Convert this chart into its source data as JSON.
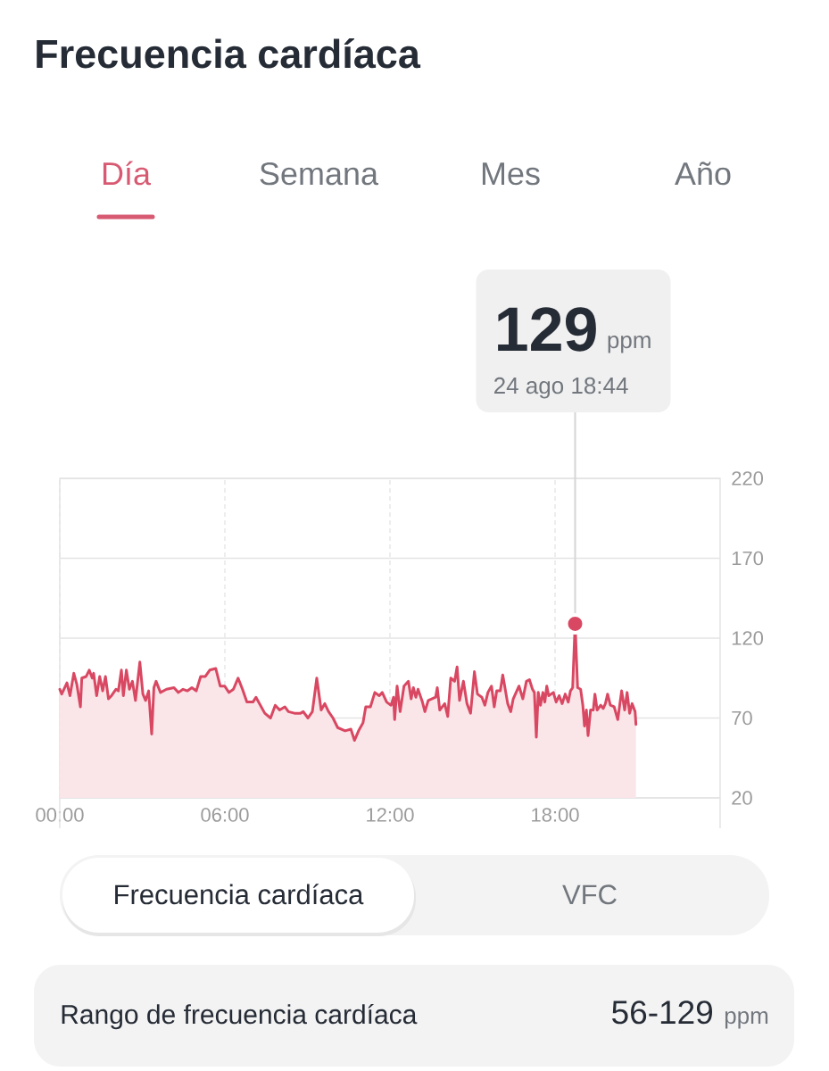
{
  "chart_data": {
    "type": "area",
    "title": "Frecuencia cardíaca",
    "series": [
      {
        "color": "#d94862",
        "x": [
          0,
          0.07,
          0.26,
          0.37,
          0.51,
          0.62,
          0.75,
          0.8,
          0.96,
          1.07,
          1.18,
          1.23,
          1.34,
          1.45,
          1.56,
          1.66,
          1.77,
          1.88,
          2.04,
          2.13,
          2.24,
          2.31,
          2.42,
          2.53,
          2.64,
          2.75,
          2.91,
          3.02,
          3.12,
          3.23,
          3.34,
          3.42,
          3.5,
          3.66,
          3.88,
          4.15,
          4.31,
          4.48,
          4.64,
          4.8,
          4.96,
          5.12,
          5.29,
          5.45,
          5.67,
          5.83,
          5.99,
          6.15,
          6.31,
          6.48,
          6.64,
          6.8,
          7.02,
          7.13,
          7.29,
          7.45,
          7.66,
          7.83,
          7.99,
          8.18,
          8.31,
          8.53,
          8.75,
          8.85,
          9.02,
          9.18,
          9.34,
          9.5,
          9.63,
          9.77,
          9.93,
          10.1,
          10.37,
          10.58,
          10.71,
          10.86,
          11.02,
          11.12,
          11.29,
          11.45,
          11.61,
          11.72,
          11.88,
          12.04,
          12.13,
          12.17,
          12.26,
          12.37,
          12.51,
          12.67,
          12.77,
          12.85,
          12.94,
          13.02,
          13.18,
          13.27,
          13.39,
          13.66,
          13.72,
          13.81,
          13.99,
          14.1,
          14.21,
          14.35,
          14.44,
          14.53,
          14.67,
          14.8,
          14.93,
          15.07,
          15.18,
          15.34,
          15.45,
          15.56,
          15.69,
          15.79,
          15.88,
          16.01,
          16.1,
          16.28,
          16.39,
          16.48,
          16.69,
          16.83,
          16.96,
          17.07,
          17.18,
          17.25,
          17.32,
          17.39,
          17.47,
          17.56,
          17.63,
          17.7,
          17.77,
          17.94,
          18.04,
          18.15,
          18.26,
          18.37,
          18.48,
          18.56,
          18.64,
          18.73,
          18.82,
          18.93,
          19.01,
          19.07,
          19.14,
          19.2,
          19.29,
          19.39,
          19.45,
          19.53,
          19.66,
          19.75,
          19.83,
          19.91,
          20.01,
          20.15,
          20.28,
          20.42,
          20.53,
          20.62,
          20.71,
          20.8,
          20.91,
          20.94
        ],
        "values": [
          88,
          85,
          92,
          84,
          98,
          91,
          77,
          95,
          96,
          100,
          95,
          98,
          84,
          96,
          87,
          96,
          82,
          84,
          88,
          87,
          100,
          84,
          100,
          88,
          93,
          81,
          105,
          85,
          81,
          87,
          60,
          89,
          93,
          86,
          88,
          89,
          86,
          88,
          87,
          89,
          87,
          96,
          96,
          100,
          101,
          90,
          90,
          86,
          88,
          95,
          88,
          80,
          80,
          83,
          78,
          73,
          70,
          78,
          75,
          77,
          74,
          73,
          73,
          74,
          70,
          74,
          95,
          75,
          79,
          74,
          70,
          64,
          62,
          63,
          56,
          62,
          67,
          77,
          77,
          86,
          84,
          86,
          80,
          78,
          83,
          69,
          90,
          74,
          90,
          93,
          82,
          89,
          83,
          88,
          80,
          74,
          81,
          83,
          89,
          75,
          79,
          71,
          95,
          93,
          102,
          81,
          93,
          79,
          73,
          99,
          85,
          83,
          78,
          86,
          90,
          77,
          87,
          87,
          97,
          79,
          74,
          82,
          90,
          82,
          93,
          94,
          88,
          86,
          58,
          86,
          78,
          86,
          80,
          90,
          84,
          86,
          80,
          84,
          79,
          85,
          80,
          87,
          89,
          129,
          89,
          88,
          78,
          65,
          75,
          59,
          75,
          75,
          85,
          75,
          78,
          76,
          79,
          85,
          78,
          77,
          69,
          87,
          75,
          86,
          73,
          79,
          74,
          66
        ]
      },
      {
        "type": "scatter",
        "color": "#d94862",
        "marker": "circle",
        "x": [
          18.73
        ],
        "values": [
          129
        ]
      }
    ],
    "xlim": [
      0,
      24
    ],
    "xticks": [
      {
        "value": 0,
        "label": "00:00"
      },
      {
        "value": 6,
        "label": "06:00"
      },
      {
        "value": 12,
        "label": "12:00"
      },
      {
        "value": 18,
        "label": "18:00"
      }
    ],
    "ylim": [
      20,
      220
    ],
    "yticks": [
      20,
      70,
      120,
      170,
      220
    ],
    "grid": true,
    "ref_lines": [
      {
        "axis": "x",
        "value": 18.73,
        "color": "#d6d6d6"
      }
    ],
    "annotations": [
      "129",
      "ppm",
      "24 ago 18:44",
      "Día",
      "Semana",
      "Mes",
      "Año",
      "Frecuencia cardíaca",
      "VFC",
      "Rango de frecuencia cardíaca",
      "56-129",
      "ppm"
    ]
  }
}
